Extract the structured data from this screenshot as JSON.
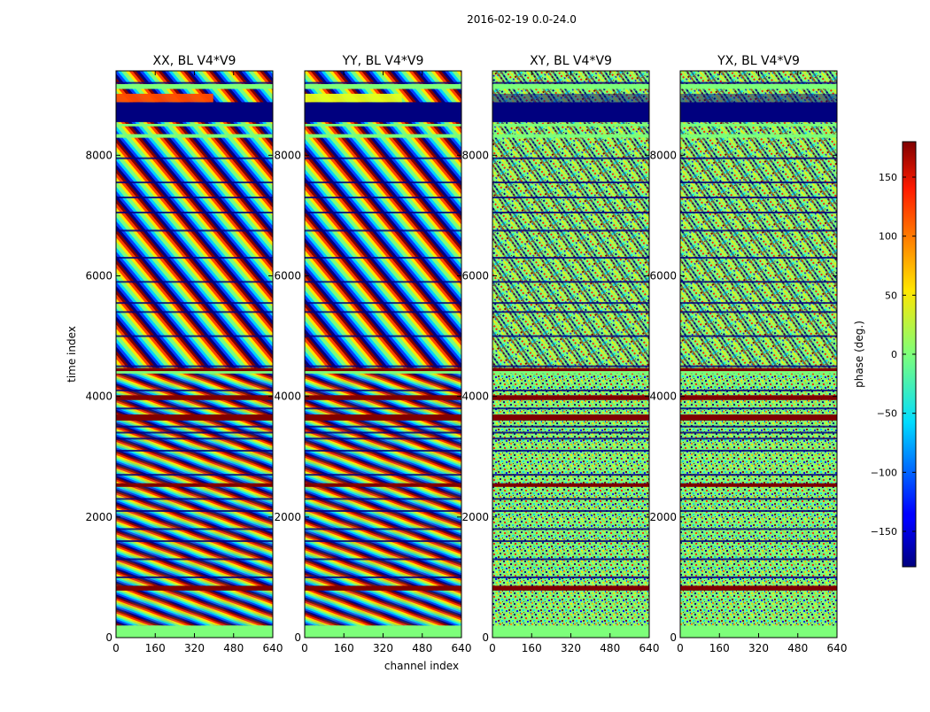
{
  "suptitle": "2016-02-19 0.0-24.0",
  "chart_data": {
    "type": "heatmap",
    "description_unit": "phase (deg.)",
    "xlabel": "channel index",
    "ylabel": "time index",
    "xlim": [
      0,
      640
    ],
    "ylim": [
      0,
      9400
    ],
    "xticks": [
      0,
      160,
      320,
      480,
      640
    ],
    "yticks": [
      0,
      2000,
      4000,
      6000,
      8000
    ],
    "panels": [
      {
        "title": "XX, BL V4*V9",
        "pattern": "fringe",
        "gap_fill": "orange"
      },
      {
        "title": "YY, BL V4*V9",
        "pattern": "fringe",
        "gap_fill": "yellow"
      },
      {
        "title": "XY, BL V4*V9",
        "pattern": "noise",
        "gap_fill": "navy"
      },
      {
        "title": "YX, BL V4*V9",
        "pattern": "noise",
        "gap_fill": "navy"
      }
    ],
    "colorbar": {
      "label": "phase (deg.)",
      "range": [
        -180,
        180
      ],
      "ticks": [
        150,
        100,
        50,
        0,
        -50,
        -100,
        -150
      ],
      "tick_labels": [
        "150",
        "100",
        "50",
        "0",
        "−50",
        "−100",
        "−150"
      ],
      "colormap": "jet"
    },
    "flat_bands": [
      [
        0,
        200,
        "green"
      ],
      [
        780,
        860,
        "red"
      ],
      [
        2500,
        2560,
        "red"
      ],
      [
        3600,
        3700,
        "red"
      ],
      [
        3940,
        4020,
        "red"
      ],
      [
        4380,
        4420,
        "green"
      ],
      [
        4420,
        4470,
        "red"
      ],
      [
        8290,
        8350,
        "green"
      ],
      [
        8480,
        8520,
        "green"
      ],
      [
        8550,
        8880,
        "navy"
      ],
      [
        9100,
        9180,
        "green"
      ]
    ],
    "row_breaks": [
      1000,
      1300,
      1600,
      1800,
      2100,
      2300,
      2700,
      3100,
      3300,
      3400,
      3500,
      3800,
      4100,
      4500,
      5000,
      5400,
      5550,
      5900,
      6300,
      6750,
      7050,
      7300,
      7550,
      7950,
      9200
    ]
  }
}
